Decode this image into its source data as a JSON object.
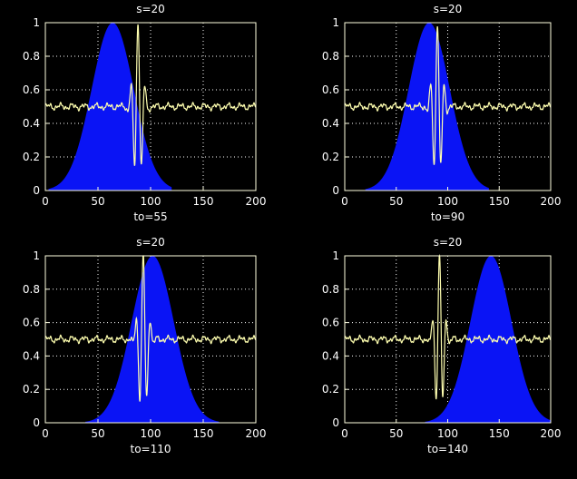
{
  "figure": {
    "background": "#000000",
    "axis_color": "#ffffe0",
    "fill_color": "#0a14f5",
    "signal_color": "#ffffb0"
  },
  "chart_data": [
    {
      "type": "area",
      "title": "s=20",
      "xlabel": "to=55",
      "xlim": [
        0,
        200
      ],
      "ylim": [
        0,
        1
      ],
      "xticks": [
        "0",
        "50",
        "100",
        "150",
        "200"
      ],
      "yticks": [
        "0",
        "0.2",
        "0.4",
        "0.6",
        "0.8",
        "1"
      ],
      "grid": true,
      "series": [
        {
          "kind": "gaussian-fill",
          "center": 64,
          "sigma": 20,
          "x_range": [
            3,
            120
          ],
          "peak": 1.0
        },
        {
          "kind": "wavelet-line",
          "center": 88,
          "baseline": 0.5,
          "amplitude": 0.5,
          "x_range": [
            0,
            200
          ]
        }
      ]
    },
    {
      "type": "area",
      "title": "s=20",
      "xlabel": "to=90",
      "xlim": [
        0,
        200
      ],
      "ylim": [
        0,
        1
      ],
      "xticks": [
        "0",
        "50",
        "100",
        "150",
        "200"
      ],
      "yticks": [
        "0",
        "0.2",
        "0.4",
        "0.6",
        "0.8",
        "1"
      ],
      "grid": true,
      "series": [
        {
          "kind": "gaussian-fill",
          "center": 82,
          "sigma": 20,
          "x_range": [
            20,
            140
          ],
          "peak": 1.0
        },
        {
          "kind": "wavelet-line",
          "center": 90,
          "baseline": 0.5,
          "amplitude": 0.5,
          "x_range": [
            0,
            200
          ]
        }
      ]
    },
    {
      "type": "area",
      "title": "s=20",
      "xlabel": "to=110",
      "xlim": [
        0,
        200
      ],
      "ylim": [
        0,
        1
      ],
      "xticks": [
        "0",
        "50",
        "100",
        "150",
        "200"
      ],
      "yticks": [
        "0",
        "0.2",
        "0.4",
        "0.6",
        "0.8",
        "1"
      ],
      "grid": true,
      "series": [
        {
          "kind": "gaussian-fill",
          "center": 102,
          "sigma": 20,
          "x_range": [
            38,
            165
          ],
          "peak": 1.0
        },
        {
          "kind": "wavelet-line",
          "center": 93,
          "baseline": 0.5,
          "amplitude": 0.5,
          "x_range": [
            0,
            200
          ]
        }
      ]
    },
    {
      "type": "area",
      "title": "s=20",
      "xlabel": "to=140",
      "xlim": [
        0,
        200
      ],
      "ylim": [
        0,
        1
      ],
      "xticks": [
        "0",
        "50",
        "100",
        "150",
        "200"
      ],
      "yticks": [
        "0",
        "0.2",
        "0.4",
        "0.6",
        "0.8",
        "1"
      ],
      "grid": true,
      "series": [
        {
          "kind": "gaussian-fill",
          "center": 142,
          "sigma": 20,
          "x_range": [
            78,
            200
          ],
          "peak": 1.0
        },
        {
          "kind": "wavelet-line",
          "center": 92,
          "baseline": 0.5,
          "amplitude": 0.5,
          "x_range": [
            0,
            200
          ]
        }
      ]
    }
  ]
}
